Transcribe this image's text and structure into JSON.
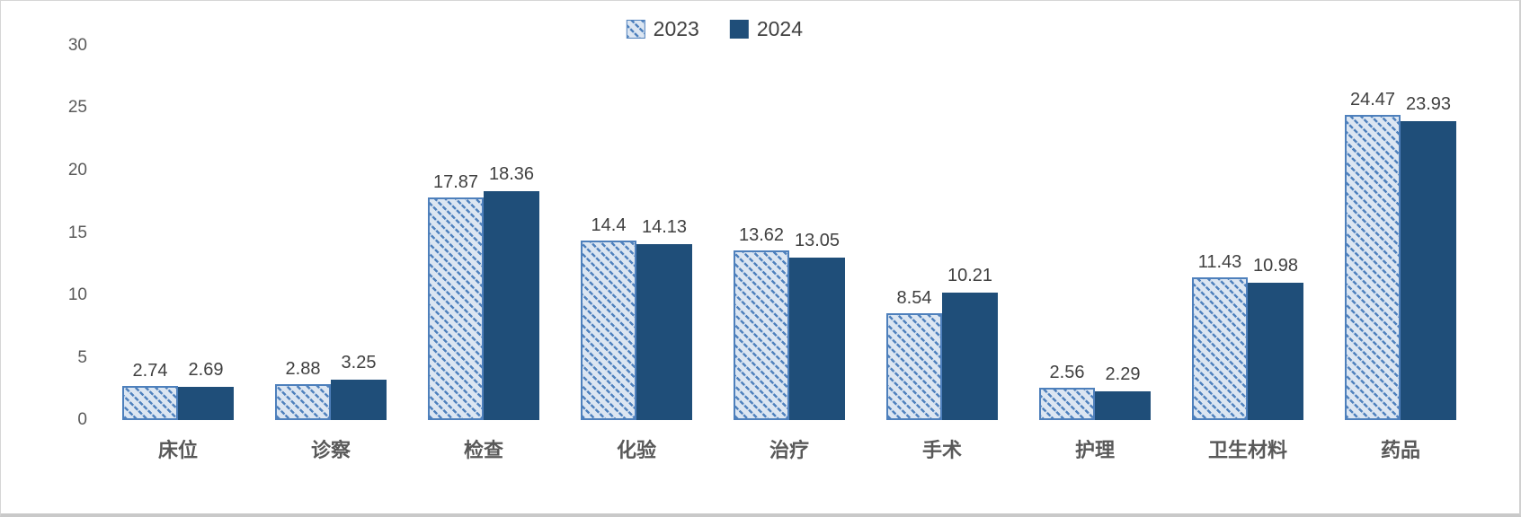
{
  "chart_data": {
    "type": "bar",
    "title": "",
    "xlabel": "",
    "ylabel": "",
    "categories": [
      "床位",
      "诊察",
      "检查",
      "化验",
      "治疗",
      "手术",
      "护理",
      "卫生材料",
      "药品"
    ],
    "series": [
      {
        "name": "2023",
        "style": "hatched",
        "values": [
          2.74,
          2.88,
          17.87,
          14.4,
          13.62,
          8.54,
          2.56,
          11.43,
          24.47
        ]
      },
      {
        "name": "2024",
        "style": "solid",
        "values": [
          2.69,
          3.25,
          18.36,
          14.13,
          13.05,
          10.21,
          2.29,
          10.98,
          23.93
        ]
      }
    ],
    "ylim": [
      0,
      30
    ],
    "yticks": [
      0,
      5,
      10,
      15,
      20,
      25,
      30
    ],
    "grid": false,
    "legend_position": "top-center",
    "value_labels": true
  },
  "colors": {
    "series_2023_bg": "#dce6f2",
    "series_2023_hatch": "#4f81bd",
    "series_2023_border": "#4e80bc",
    "series_2024_fill": "#1f4e79",
    "tick_text": "#595959",
    "value_label_text": "#404040",
    "category_text": "#595959"
  }
}
